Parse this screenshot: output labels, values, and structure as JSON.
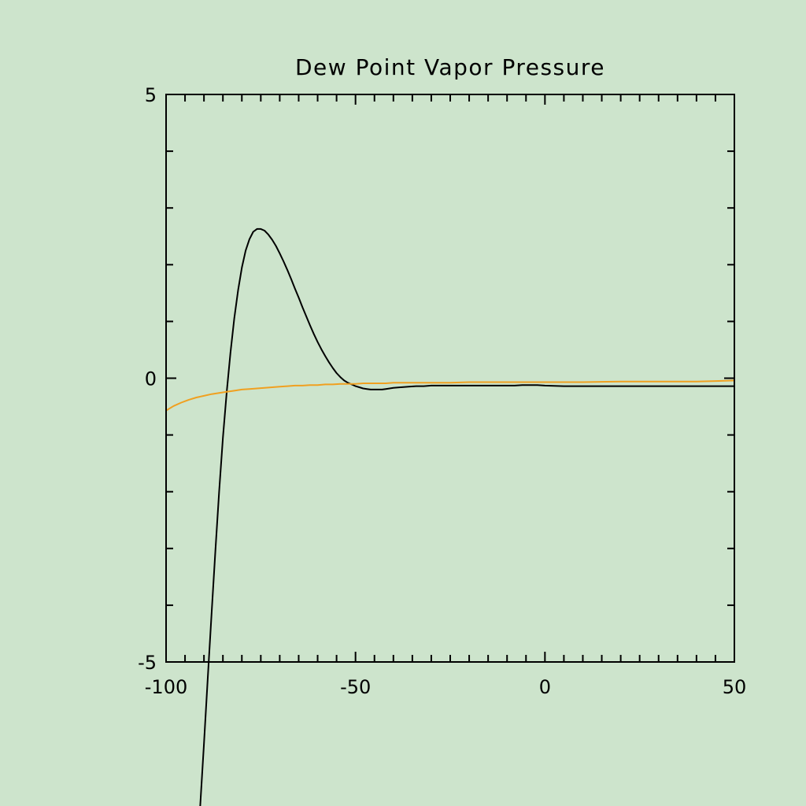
{
  "chart_data": {
    "type": "line",
    "title": "Dew Point Vapor Pressure",
    "xlabel": "",
    "ylabel": "",
    "xlim": [
      -100,
      50
    ],
    "ylim": [
      -5,
      5
    ],
    "x_ticks": {
      "major": [
        -100,
        -50,
        0,
        50
      ],
      "minor_step": 5
    },
    "y_ticks": {
      "major": [
        -5,
        0,
        5
      ],
      "minor_step": 1
    },
    "x_tick_labels": [
      "-100",
      "-50",
      "0",
      "50"
    ],
    "y_tick_labels": [
      "-5",
      "0",
      "5"
    ],
    "grid": false,
    "clip_to_axes": false,
    "series": [
      {
        "color": "#000000",
        "x": [
          -91,
          -90,
          -89,
          -88,
          -87,
          -86,
          -85,
          -84,
          -83,
          -82,
          -81,
          -80,
          -79,
          -78,
          -77,
          -76,
          -75,
          -74,
          -73,
          -72,
          -71,
          -70,
          -69,
          -68,
          -67,
          -66,
          -65,
          -64,
          -63,
          -62,
          -61,
          -60,
          -59,
          -58,
          -57,
          -56,
          -55,
          -54,
          -53,
          -52,
          -51,
          -50,
          -49,
          -48,
          -47,
          -46,
          -45,
          -44,
          -43,
          -42,
          -41,
          -40,
          -38,
          -36,
          -34,
          -32,
          -30,
          -28,
          -26,
          -24,
          -22,
          -20,
          -18,
          -16,
          -14,
          -12,
          -10,
          -8,
          -6,
          -4,
          -2,
          0,
          5,
          10,
          20,
          30,
          40,
          50
        ],
        "y": [
          -7.55,
          -6.45,
          -5.3,
          -4.15,
          -3.05,
          -2.0,
          -1.05,
          -0.25,
          0.45,
          1.05,
          1.55,
          1.95,
          2.25,
          2.45,
          2.58,
          2.63,
          2.63,
          2.6,
          2.53,
          2.44,
          2.33,
          2.2,
          2.06,
          1.91,
          1.75,
          1.58,
          1.42,
          1.25,
          1.09,
          0.93,
          0.78,
          0.64,
          0.51,
          0.39,
          0.28,
          0.18,
          0.09,
          0.02,
          -0.04,
          -0.08,
          -0.11,
          -0.14,
          -0.16,
          -0.18,
          -0.19,
          -0.2,
          -0.2,
          -0.2,
          -0.2,
          -0.19,
          -0.18,
          -0.17,
          -0.16,
          -0.15,
          -0.14,
          -0.14,
          -0.13,
          -0.13,
          -0.13,
          -0.13,
          -0.13,
          -0.13,
          -0.13,
          -0.13,
          -0.13,
          -0.13,
          -0.13,
          -0.13,
          -0.12,
          -0.12,
          -0.12,
          -0.13,
          -0.14,
          -0.14,
          -0.14,
          -0.14,
          -0.14,
          -0.14
        ]
      },
      {
        "color": "#f0a020",
        "x": [
          -100,
          -98,
          -96,
          -94,
          -92,
          -90,
          -88,
          -86,
          -84,
          -82,
          -80,
          -78,
          -76,
          -74,
          -72,
          -70,
          -68,
          -66,
          -64,
          -62,
          -60,
          -58,
          -56,
          -54,
          -52,
          -50,
          -48,
          -46,
          -44,
          -42,
          -40,
          -35,
          -30,
          -25,
          -20,
          -15,
          -10,
          -5,
          0,
          10,
          20,
          30,
          40,
          45,
          50
        ],
        "y": [
          -0.57,
          -0.49,
          -0.43,
          -0.38,
          -0.34,
          -0.31,
          -0.28,
          -0.26,
          -0.24,
          -0.22,
          -0.2,
          -0.19,
          -0.18,
          -0.17,
          -0.16,
          -0.15,
          -0.14,
          -0.13,
          -0.13,
          -0.12,
          -0.12,
          -0.11,
          -0.11,
          -0.1,
          -0.1,
          -0.1,
          -0.09,
          -0.09,
          -0.09,
          -0.09,
          -0.08,
          -0.08,
          -0.08,
          -0.08,
          -0.07,
          -0.07,
          -0.07,
          -0.07,
          -0.07,
          -0.07,
          -0.06,
          -0.06,
          -0.06,
          -0.05,
          -0.04
        ]
      }
    ]
  }
}
